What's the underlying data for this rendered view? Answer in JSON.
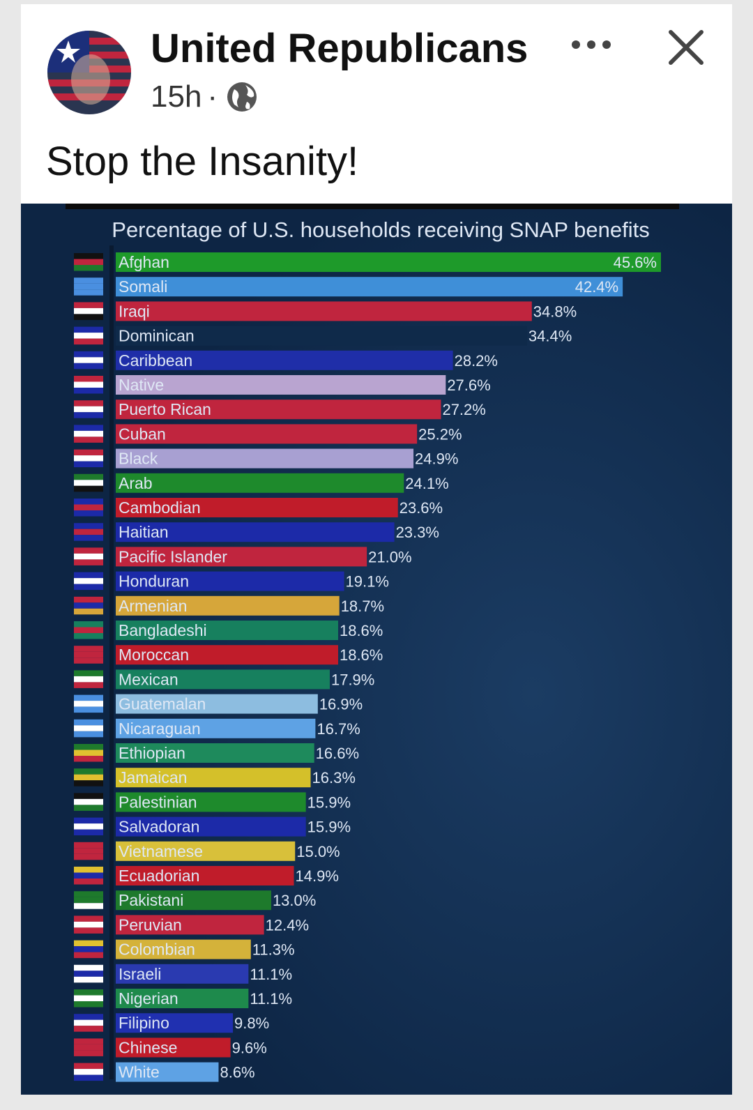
{
  "post": {
    "page_name": "United Republicans",
    "time": "15h",
    "separator": "·",
    "caption": "Stop the Insanity!",
    "icons": {
      "avatar": "avatar-flag-face",
      "privacy": "globe-icon",
      "more": "more-dots-icon",
      "close": "close-icon"
    }
  },
  "colors": {
    "background": "#0f2a4a",
    "label": "#dfe8f5",
    "title": "#dfe8f5"
  },
  "chart_data": {
    "type": "bar",
    "orientation": "horizontal",
    "title": "Percentage of U.S. households receiving SNAP benefits",
    "xlim": [
      0,
      50
    ],
    "categories": [
      "Afghan",
      "Somali",
      "Iraqi",
      "Dominican",
      "Caribbean",
      "Native",
      "Puerto Rican",
      "Cuban",
      "Black",
      "Arab",
      "Cambodian",
      "Haitian",
      "Pacific Islander",
      "Honduran",
      "Armenian",
      "Bangladeshi",
      "Moroccan",
      "Mexican",
      "Guatemalan",
      "Nicaraguan",
      "Ethiopian",
      "Jamaican",
      "Palestinian",
      "Salvadoran",
      "Vietnamese",
      "Ecuadorian",
      "Pakistani",
      "Peruvian",
      "Colombian",
      "Israeli",
      "Nigerian",
      "Filipino",
      "Chinese",
      "White"
    ],
    "values": [
      45.6,
      42.4,
      34.8,
      34.4,
      28.2,
      27.6,
      27.2,
      25.2,
      24.9,
      24.1,
      23.6,
      23.3,
      21.0,
      19.1,
      18.7,
      18.6,
      18.6,
      17.9,
      16.9,
      16.7,
      16.6,
      16.3,
      15.9,
      15.9,
      15.0,
      14.9,
      13.0,
      12.4,
      11.3,
      11.1,
      11.1,
      9.8,
      9.6,
      8.6
    ],
    "labels": [
      "45.6%",
      "42.4%",
      "34.8%",
      "34.4%",
      "28.2%",
      "27.6%",
      "27.2%",
      "25.2%",
      "24.9%",
      "24.1%",
      "23.6%",
      "23.3%",
      "21.0%",
      "19.1%",
      "18.7%",
      "18.6%",
      "18.6%",
      "17.9%",
      "16.9%",
      "16.7%",
      "16.6%",
      "16.3%",
      "15.9%",
      "15.9%",
      "15.0%",
      "14.9%",
      "13.0%",
      "12.4%",
      "11.3%",
      "11.1%",
      "11.1%",
      "9.8%",
      "9.6%",
      "8.6%"
    ],
    "bar_colors": [
      "#1e9a2a",
      "#3f8fd8",
      "#c0253e",
      "#0f2a4a",
      "#1f2ea8",
      "#b9a4d0",
      "#c0253e",
      "#c0253e",
      "#a8a0d2",
      "#1e8a2c",
      "#c01c2a",
      "#1c2aa8",
      "#c0253e",
      "#1c2aa8",
      "#d6a63a",
      "#17805e",
      "#c01c2a",
      "#17805e",
      "#8dbde0",
      "#5ea2e4",
      "#1e8a5c",
      "#d4c02a",
      "#1e8a2c",
      "#1c2aa8",
      "#d8c03a",
      "#c01c2a",
      "#1e7a2c",
      "#c0253e",
      "#d4b23a",
      "#2a3ab0",
      "#1e8a4c",
      "#2030b0",
      "#c01c2a",
      "#5ea2e4"
    ],
    "flag_colors": [
      [
        "#111111",
        "#c0253e",
        "#1e7a2c"
      ],
      [
        "#4a8fe0",
        "#4a8fe0",
        "#4a8fe0"
      ],
      [
        "#c0253e",
        "#ffffff",
        "#111111"
      ],
      [
        "#1c2aa8",
        "#ffffff",
        "#c0253e"
      ],
      [
        "#1c2aa8",
        "#ffffff",
        "#1c2aa8"
      ],
      [
        "#c0253e",
        "#ffffff",
        "#1c2aa8"
      ],
      [
        "#c0253e",
        "#ffffff",
        "#1c2aa8"
      ],
      [
        "#1c2aa8",
        "#ffffff",
        "#c0253e"
      ],
      [
        "#c0253e",
        "#ffffff",
        "#1c2aa8"
      ],
      [
        "#1e7a2c",
        "#ffffff",
        "#111111"
      ],
      [
        "#1c2aa8",
        "#c0253e",
        "#1c2aa8"
      ],
      [
        "#1c2aa8",
        "#c0253e",
        "#1c2aa8"
      ],
      [
        "#c0253e",
        "#ffffff",
        "#c0253e"
      ],
      [
        "#1c2aa8",
        "#ffffff",
        "#1c2aa8"
      ],
      [
        "#c0253e",
        "#1c2aa8",
        "#d6a63a"
      ],
      [
        "#17805e",
        "#c0253e",
        "#17805e"
      ],
      [
        "#c0253e",
        "#c0253e",
        "#c0253e"
      ],
      [
        "#1e7a2c",
        "#ffffff",
        "#c0253e"
      ],
      [
        "#4a8fe0",
        "#ffffff",
        "#4a8fe0"
      ],
      [
        "#4a8fe0",
        "#ffffff",
        "#4a8fe0"
      ],
      [
        "#1e7a2c",
        "#e0c030",
        "#c0253e"
      ],
      [
        "#1e7a2c",
        "#e0c030",
        "#111111"
      ],
      [
        "#111111",
        "#ffffff",
        "#1e7a2c"
      ],
      [
        "#1c2aa8",
        "#ffffff",
        "#1c2aa8"
      ],
      [
        "#c0253e",
        "#c0253e",
        "#c0253e"
      ],
      [
        "#e0c030",
        "#1c2aa8",
        "#c0253e"
      ],
      [
        "#1e7a2c",
        "#1e7a2c",
        "#ffffff"
      ],
      [
        "#c0253e",
        "#ffffff",
        "#c0253e"
      ],
      [
        "#e0c030",
        "#1c2aa8",
        "#c0253e"
      ],
      [
        "#ffffff",
        "#1c2aa8",
        "#ffffff"
      ],
      [
        "#1e7a2c",
        "#ffffff",
        "#1e7a2c"
      ],
      [
        "#1c2aa8",
        "#ffffff",
        "#c0253e"
      ],
      [
        "#c0253e",
        "#c0253e",
        "#c0253e"
      ],
      [
        "#c0253e",
        "#ffffff",
        "#1c2aa8"
      ]
    ]
  }
}
